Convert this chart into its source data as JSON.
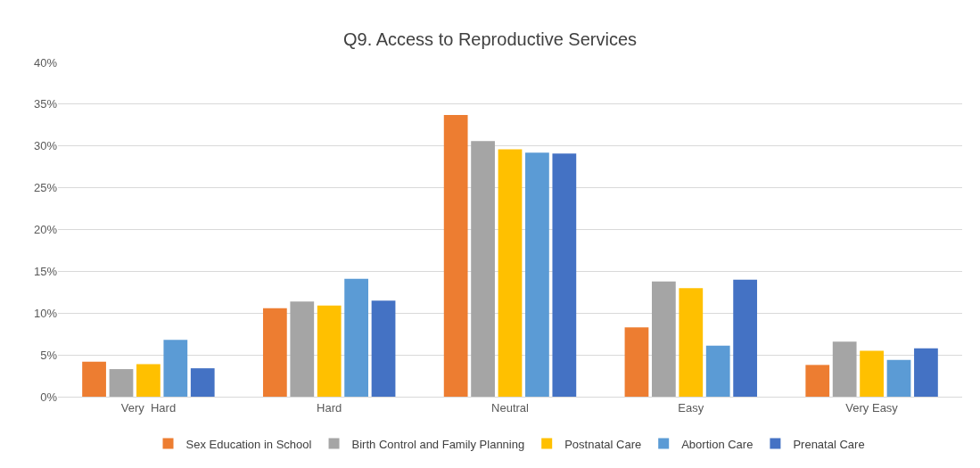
{
  "chart_data": {
    "type": "bar",
    "title": "Q9. Access to Reproductive Services",
    "categories": [
      "Very  Hard",
      "Hard",
      "Neutral",
      "Easy",
      "Very Easy"
    ],
    "series": [
      {
        "name": "Sex Education in School",
        "color": "#ed7d31",
        "values": [
          4.2,
          10.6,
          33.7,
          8.3,
          3.8
        ]
      },
      {
        "name": "Birth Control and Family Planning",
        "color": "#a5a5a5",
        "values": [
          3.3,
          11.4,
          30.6,
          13.8,
          6.6
        ]
      },
      {
        "name": "Postnatal Care",
        "color": "#ffc000",
        "values": [
          3.9,
          10.9,
          29.6,
          13.0,
          5.5
        ]
      },
      {
        "name": "Abortion Care",
        "color": "#5b9bd5",
        "values": [
          6.8,
          14.1,
          29.2,
          6.1,
          4.4
        ]
      },
      {
        "name": "Prenatal Care",
        "color": "#4472c4",
        "values": [
          3.4,
          11.5,
          29.1,
          14.0,
          5.8
        ]
      }
    ],
    "ylim": [
      0,
      40
    ],
    "yticks": [
      {
        "value": 0,
        "label": "0%"
      },
      {
        "value": 5,
        "label": "5%"
      },
      {
        "value": 10,
        "label": "10%"
      },
      {
        "value": 15,
        "label": "15%"
      },
      {
        "value": 20,
        "label": "20%"
      },
      {
        "value": 25,
        "label": "25%"
      },
      {
        "value": 30,
        "label": "30%"
      },
      {
        "value": 35,
        "label": "35%"
      },
      {
        "value": 40,
        "label": "40%"
      }
    ],
    "grid": "y",
    "legend": "bottom"
  }
}
